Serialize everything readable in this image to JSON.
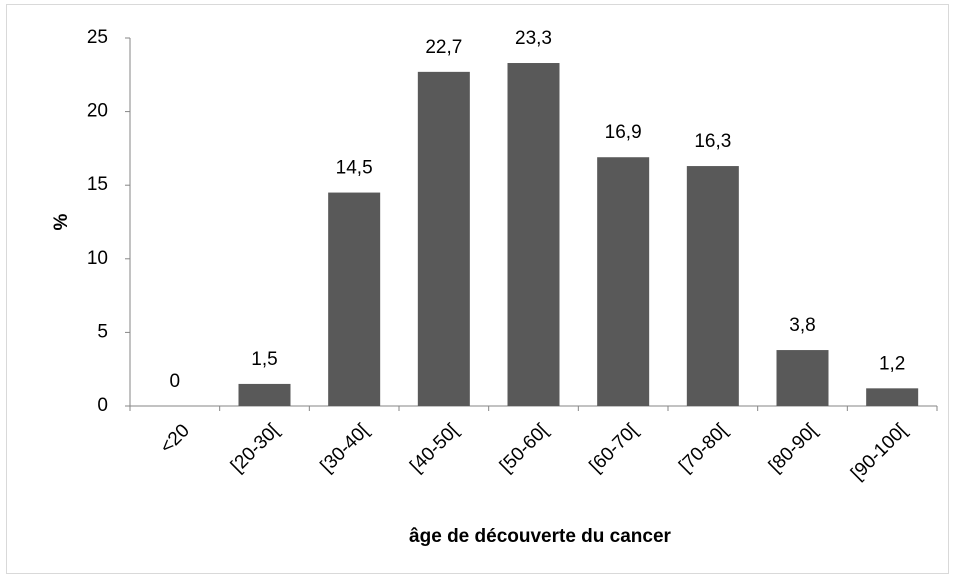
{
  "chart_data": {
    "type": "bar",
    "categories": [
      "<20",
      "[20-30[",
      "[30-40[",
      "[40-50[",
      "[50-60[",
      "[60-70[",
      "[70-80[",
      "[80-90[",
      "[90-100["
    ],
    "values": [
      0,
      1.5,
      14.5,
      22.7,
      23.3,
      16.9,
      16.3,
      3.8,
      1.2
    ],
    "value_labels": [
      "0",
      "1,5",
      "14,5",
      "22,7",
      "23,3",
      "16,9",
      "16,3",
      "3,8",
      "1,2"
    ],
    "color": "#595959",
    "y_label": "%",
    "x_label": "âge de découverte du cancer",
    "ylim": [
      0,
      25
    ],
    "yticks": [
      0,
      5,
      10,
      15,
      20,
      25
    ],
    "grid": false
  }
}
